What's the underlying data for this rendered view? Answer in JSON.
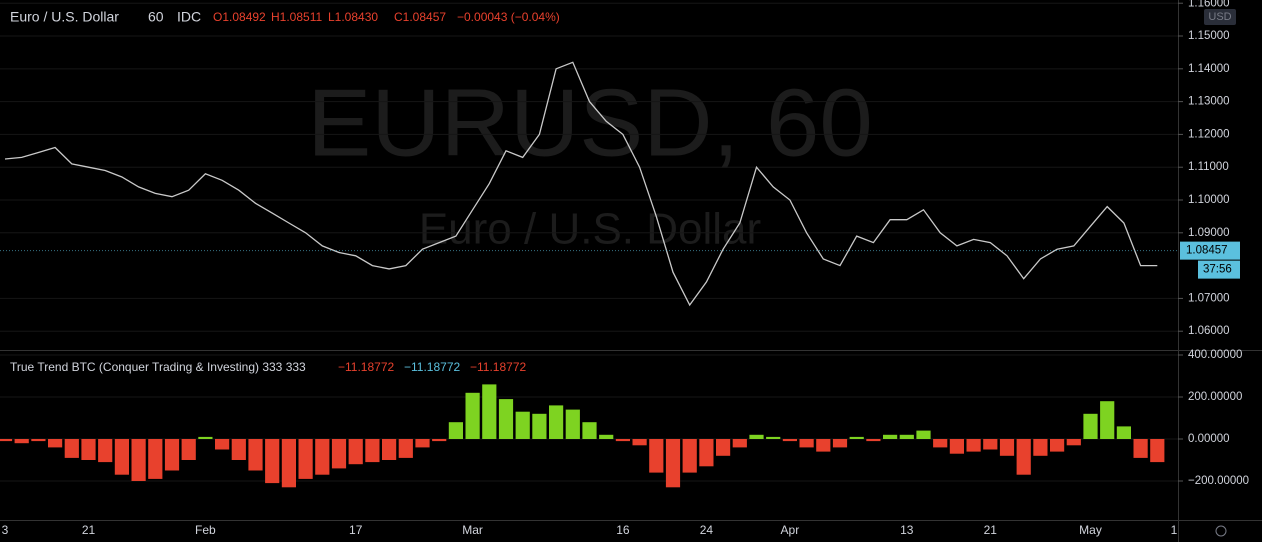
{
  "chart_data": [
    {
      "type": "line",
      "title": "Euro / U.S. Dollar",
      "interval": "60",
      "source": "IDC",
      "ohlc": [
        "O1.08492",
        "H1.08511",
        "L1.08430",
        "C1.08457"
      ],
      "change": "−0.00043 (−0.04%)",
      "watermark": "EURUSD, 60",
      "watermark_subtitle": "Euro / U.S. Dollar",
      "currency": "USD",
      "color": "#c9c9c9",
      "values": [
        1.1125,
        1.113,
        1.1145,
        1.116,
        1.111,
        1.11,
        1.109,
        1.107,
        1.104,
        1.102,
        1.101,
        1.103,
        1.108,
        1.106,
        1.103,
        1.099,
        1.096,
        1.093,
        1.09,
        1.086,
        1.084,
        1.083,
        1.08,
        1.079,
        1.08,
        1.085,
        1.087,
        1.089,
        1.097,
        1.105,
        1.115,
        1.113,
        1.12,
        1.14,
        1.142,
        1.13,
        1.124,
        1.12,
        1.11,
        1.095,
        1.078,
        1.068,
        1.075,
        1.085,
        1.093,
        1.11,
        1.104,
        1.1,
        1.09,
        1.082,
        1.08,
        1.089,
        1.087,
        1.094,
        1.094,
        1.097,
        1.09,
        1.086,
        1.088,
        1.087,
        1.083,
        1.076,
        1.082,
        1.085,
        1.086,
        1.092,
        1.098,
        1.093,
        1.08,
        1.08,
        null
      ],
      "last_price": {
        "value": 1.08457,
        "label": "1.08457"
      },
      "countdown": "37:56",
      "ylim": [
        1.05427,
        1.16098
      ],
      "yticks": [
        {
          "value": 1.16,
          "label": "1.16000"
        },
        {
          "value": 1.15,
          "label": "1.15000"
        },
        {
          "value": 1.14,
          "label": "1.14000"
        },
        {
          "value": 1.13,
          "label": "1.13000"
        },
        {
          "value": 1.12,
          "label": "1.12000"
        },
        {
          "value": 1.11,
          "label": "1.11000"
        },
        {
          "value": 1.1,
          "label": "1.10000"
        },
        {
          "value": 1.09,
          "label": "1.09000"
        },
        {
          "value": 1.07,
          "label": "1.07000"
        },
        {
          "value": 1.06,
          "label": "1.06000"
        }
      ],
      "grid": true
    },
    {
      "type": "bar",
      "title": "True Trend BTC (Conquer Trading & Investing) 333 333",
      "legend_values": [
        "−11.18772",
        "−11.18772",
        "−11.18772"
      ],
      "positive_color": "#7ed321",
      "negative_color": "#e8412d",
      "categories": [
        "3",
        null,
        null,
        null,
        null,
        "21",
        null,
        null,
        null,
        null,
        null,
        null,
        "Feb",
        null,
        null,
        null,
        null,
        null,
        null,
        null,
        null,
        "17",
        null,
        null,
        null,
        null,
        null,
        null,
        "Mar",
        null,
        null,
        null,
        null,
        null,
        null,
        null,
        null,
        "16",
        null,
        null,
        null,
        null,
        "24",
        null,
        null,
        null,
        null,
        "Apr",
        null,
        null,
        null,
        null,
        null,
        null,
        "13",
        null,
        null,
        null,
        null,
        "21",
        null,
        null,
        null,
        null,
        null,
        "May",
        null,
        null,
        null,
        null,
        "1"
      ],
      "values": [
        -10,
        -20,
        -10,
        -40,
        -90,
        -100,
        -110,
        -170,
        -200,
        -190,
        -150,
        -100,
        10,
        -50,
        -100,
        -150,
        -210,
        -230,
        -190,
        -170,
        -140,
        -120,
        -110,
        -100,
        -90,
        -40,
        -10,
        80,
        220,
        260,
        190,
        130,
        120,
        160,
        140,
        80,
        20,
        -10,
        -30,
        -160,
        -230,
        -160,
        -130,
        -80,
        -40,
        20,
        10,
        -10,
        -40,
        -60,
        -40,
        10,
        -10,
        20,
        20,
        40,
        -40,
        -70,
        -60,
        -50,
        -80,
        -170,
        -80,
        -60,
        -30,
        120,
        180,
        60,
        -90,
        -110,
        null
      ],
      "ylim": [
        -385.7,
        423.8
      ],
      "yticks": [
        {
          "value": 400,
          "label": "400.00000"
        },
        {
          "value": 200,
          "label": "200.00000"
        },
        {
          "value": 0,
          "label": "0.00000"
        },
        {
          "value": -200,
          "label": "−200.00000"
        }
      ],
      "grid": true
    }
  ]
}
